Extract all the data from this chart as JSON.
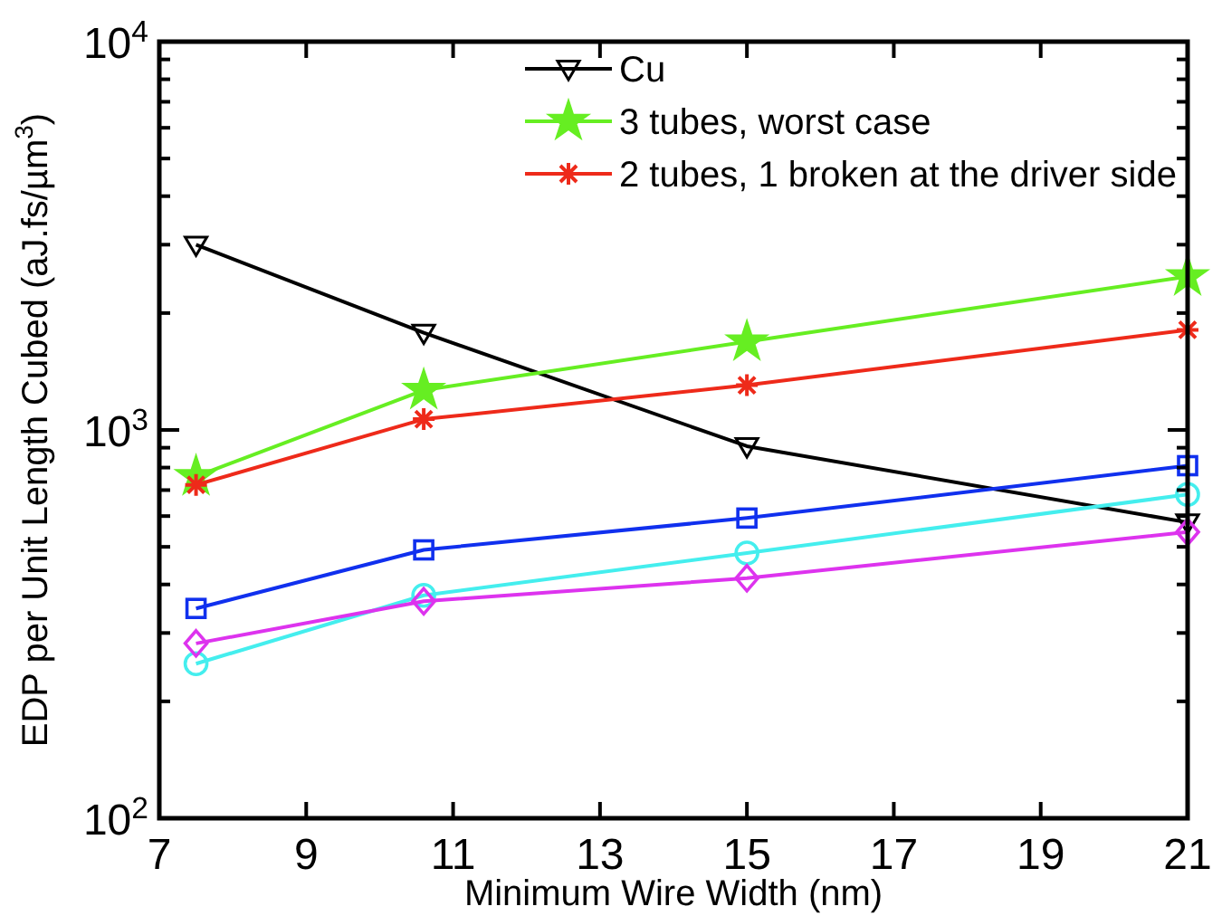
{
  "chart_data": {
    "type": "line",
    "xlabel": "Minimum Wire Width (nm)",
    "ylabel": "EDP per Unit Length Cubed (aJ.fs/µm$^{3}$)",
    "log": "y",
    "grid": false,
    "legend": "top right",
    "x": [
      7.5,
      10.6,
      15,
      21
    ],
    "xlim": [
      7,
      21
    ],
    "xticks": [
      7,
      9,
      11,
      13,
      15,
      17,
      19,
      21
    ],
    "ylim": [
      100,
      10000
    ],
    "yticks": [
      {
        "value": 100,
        "label": "10$^{2}$"
      },
      {
        "value": 200,
        "label": null
      },
      {
        "value": 300,
        "label": null
      },
      {
        "value": 400,
        "label": null
      },
      {
        "value": 500,
        "label": null
      },
      {
        "value": 600,
        "label": null
      },
      {
        "value": 700,
        "label": null
      },
      {
        "value": 800,
        "label": null
      },
      {
        "value": 900,
        "label": null
      },
      {
        "value": 1000,
        "label": "10$^{3}$"
      },
      {
        "value": 2000,
        "label": null
      },
      {
        "value": 3000,
        "label": null
      },
      {
        "value": 4000,
        "label": null
      },
      {
        "value": 5000,
        "label": null
      },
      {
        "value": 6000,
        "label": null
      },
      {
        "value": 7000,
        "label": null
      },
      {
        "value": 8000,
        "label": null
      },
      {
        "value": 9000,
        "label": null
      },
      {
        "value": 10000,
        "label": "10$^{4}$"
      }
    ],
    "series": [
      {
        "name": "Cu",
        "color": "#000000",
        "marker": "triangle",
        "values": [
          3000,
          1780,
          908,
          578
        ]
      },
      {
        "name": "3 tubes, worst case",
        "color": "#66ee22",
        "marker": "star",
        "values": [
          759,
          1266,
          1687,
          2483
        ]
      },
      {
        "name": "2 tubes, 1 broken at the driver side",
        "color": "#ee2a1a",
        "marker": "cross",
        "values": [
          722,
          1066,
          1304,
          1810
        ]
      },
      {
        "color": "#1030ee",
        "marker": "square",
        "values": [
          347,
          491,
          593,
          809
        ]
      },
      {
        "color": "#44eeee",
        "marker": "circle",
        "values": [
          250,
          375,
          482,
          682
        ]
      },
      {
        "color": "#dd33ee",
        "marker": "diamond",
        "values": [
          282,
          362,
          415,
          546
        ]
      }
    ]
  }
}
